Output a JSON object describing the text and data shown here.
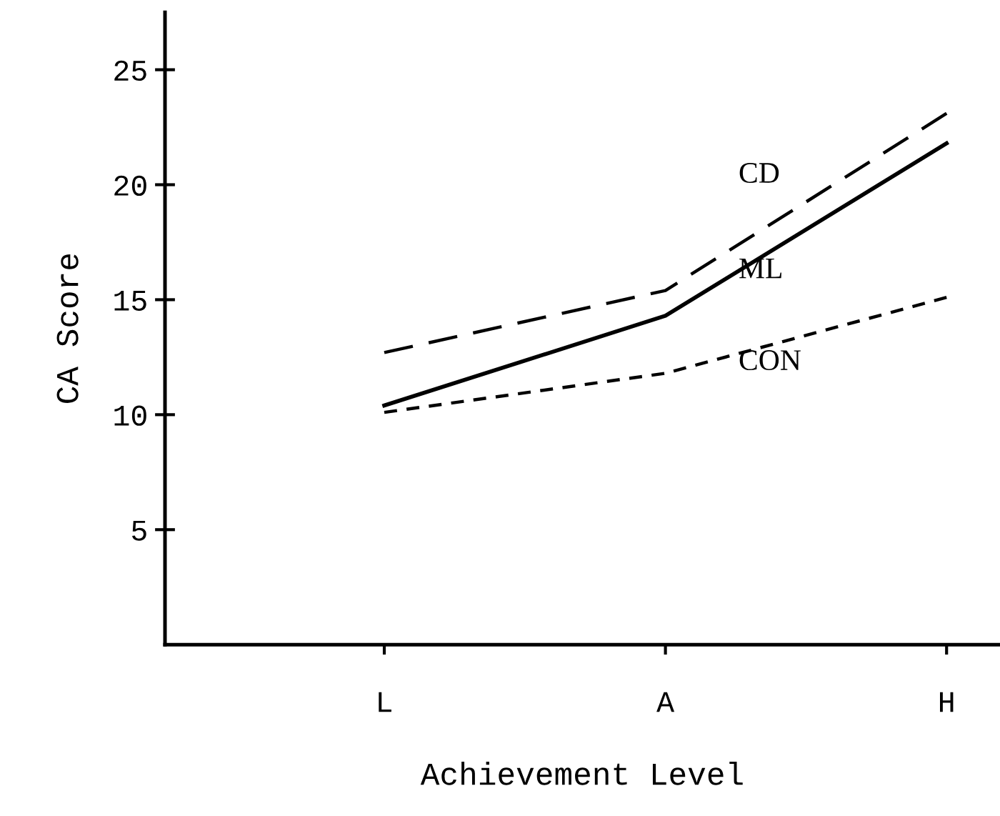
{
  "chart_data": {
    "type": "line",
    "xlabel": "Achievement Level",
    "ylabel": "CA Score",
    "categories": [
      "L",
      "A",
      "H"
    ],
    "ylim": [
      0,
      27.5
    ],
    "yticks": [
      5,
      10,
      15,
      20,
      25
    ],
    "grid": false,
    "legend": false,
    "marker": "none",
    "series": [
      {
        "name": "CD",
        "color": "#000000",
        "line_style": "dashed",
        "values": [
          12.7,
          15.4,
          23.1
        ]
      },
      {
        "name": "ML",
        "color": "#000000",
        "line_style": "solid",
        "values": [
          10.4,
          14.3,
          21.8
        ]
      },
      {
        "name": "CON",
        "color": "#000000",
        "line_style": "dotted",
        "values": [
          10.1,
          11.8,
          15.1
        ]
      }
    ]
  }
}
